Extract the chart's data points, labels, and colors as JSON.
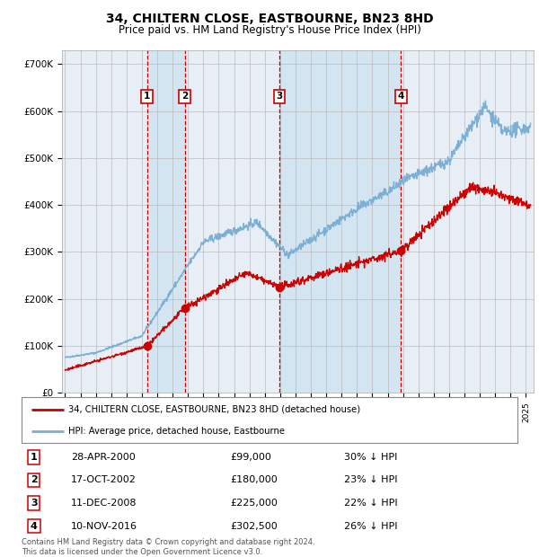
{
  "title": "34, CHILTERN CLOSE, EASTBOURNE, BN23 8HD",
  "subtitle": "Price paid vs. HM Land Registry's House Price Index (HPI)",
  "background_color": "#ffffff",
  "plot_bg_color": "#e8eef5",
  "shade_color": "#d0e4f0",
  "grid_color": "#cccccc",
  "hpi_line_color": "#7bafd4",
  "price_line_color": "#cc0000",
  "sale_marker_color": "#cc0000",
  "purchases": [
    {
      "label": "1",
      "date_num": 2000.33,
      "price": 99000
    },
    {
      "label": "2",
      "date_num": 2002.79,
      "price": 180000
    },
    {
      "label": "3",
      "date_num": 2008.95,
      "price": 225000
    },
    {
      "label": "4",
      "date_num": 2016.86,
      "price": 302500
    }
  ],
  "sale_labels": [
    {
      "num": "1",
      "date": "28-APR-2000",
      "price": "£99,000",
      "hpi_diff": "30% ↓ HPI"
    },
    {
      "num": "2",
      "date": "17-OCT-2002",
      "price": "£180,000",
      "hpi_diff": "23% ↓ HPI"
    },
    {
      "num": "3",
      "date": "11-DEC-2008",
      "price": "£225,000",
      "hpi_diff": "22% ↓ HPI"
    },
    {
      "num": "4",
      "date": "10-NOV-2016",
      "price": "£302,500",
      "hpi_diff": "26% ↓ HPI"
    }
  ],
  "legend_entry1": "34, CHILTERN CLOSE, EASTBOURNE, BN23 8HD (detached house)",
  "legend_entry2": "HPI: Average price, detached house, Eastbourne",
  "copyright_text": "Contains HM Land Registry data © Crown copyright and database right 2024.\nThis data is licensed under the Open Government Licence v3.0.",
  "ylim": [
    0,
    730000
  ],
  "xlim_start": 1994.8,
  "xlim_end": 2025.5,
  "yticks": [
    0,
    100000,
    200000,
    300000,
    400000,
    500000,
    600000,
    700000
  ],
  "ytick_labels": [
    "£0",
    "£100K",
    "£200K",
    "£300K",
    "£400K",
    "£500K",
    "£600K",
    "£700K"
  ]
}
